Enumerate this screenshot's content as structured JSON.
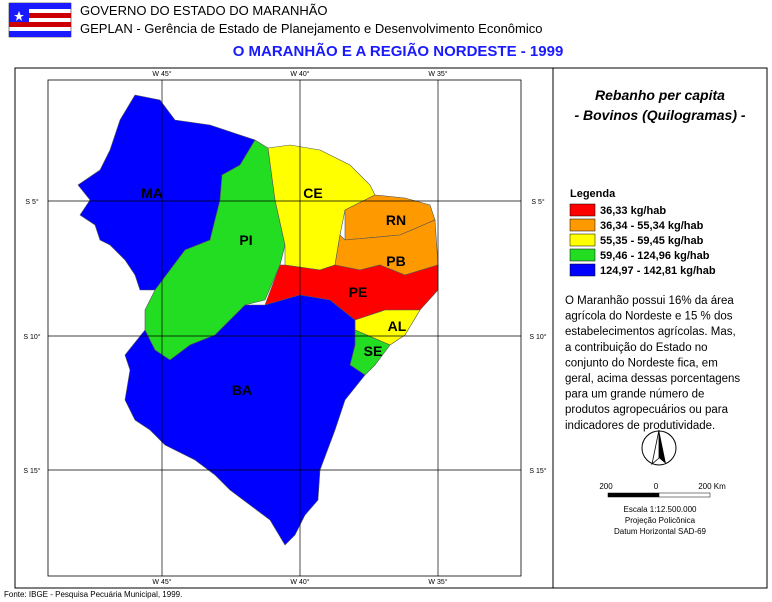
{
  "header": {
    "line1": "GOVERNO DO ESTADO DO MARANHÃO",
    "line2": "GEPLAN - Gerência de Estado de Planejamento e Desenvolvimento Econômico",
    "title": "O MARANHÃO E A REGIÃO NORDESTE - 1999"
  },
  "map": {
    "top_labels": [
      "W 45°",
      "W 40°",
      "W 35°"
    ],
    "bottom_labels": [
      "W 45°",
      "W 40°",
      "W 35°"
    ],
    "left_labels": [
      "S 5°",
      "S 10°",
      "S 15°"
    ],
    "right_labels": [
      "S 5°",
      "S 10°",
      "S 15°"
    ],
    "regions": [
      {
        "label": "MA",
        "color": "#0000ff"
      },
      {
        "label": "PI",
        "color": "#22dd22"
      },
      {
        "label": "CE",
        "color": "#ffff00"
      },
      {
        "label": "RN",
        "color": "#ff9900"
      },
      {
        "label": "PB",
        "color": "#ff9900"
      },
      {
        "label": "PE",
        "color": "#ff0000"
      },
      {
        "label": "AL",
        "color": "#ffff00"
      },
      {
        "label": "SE",
        "color": "#22dd22"
      },
      {
        "label": "BA",
        "color": "#0000ff"
      }
    ]
  },
  "panel": {
    "title": "Rebanho per capita",
    "subtitle": "- Bovinos (Quilogramas) -",
    "legend": {
      "title": "Legenda",
      "items": [
        {
          "label": "36,33 kg/hab",
          "color": "#ff0000"
        },
        {
          "label": "36,34 - 55,34 kg/hab",
          "color": "#ff9900"
        },
        {
          "label": "55,35 - 59,45 kg/hab",
          "color": "#ffff00"
        },
        {
          "label": "59,46 - 124,96 kg/hab",
          "color": "#22dd22"
        },
        {
          "label": "124,97 - 142,81 kg/hab",
          "color": "#0000ff"
        }
      ]
    },
    "text": [
      "O Maranhão possui 16% da área",
      "agrícola do Nordeste e 15 % dos",
      "estabelecimentos agrícolas. Mas,",
      "a contribuição do Estado no",
      "conjunto do Nordeste fica, em",
      "geral, acima dessas porcentagens",
      "para um grande número de",
      "produtos agropecuários ou para",
      "indicadores de produtividade."
    ],
    "scale": {
      "left": "200",
      "mid": "0",
      "right": "200 Km",
      "line1": "Escala 1:12.500.000",
      "line2": "Projeção Policônica",
      "line3": "Datum Horizontal SAD-69"
    }
  },
  "footer": "Fonte: IBGE - Pesquisa Pecuária Municipal, 1999."
}
